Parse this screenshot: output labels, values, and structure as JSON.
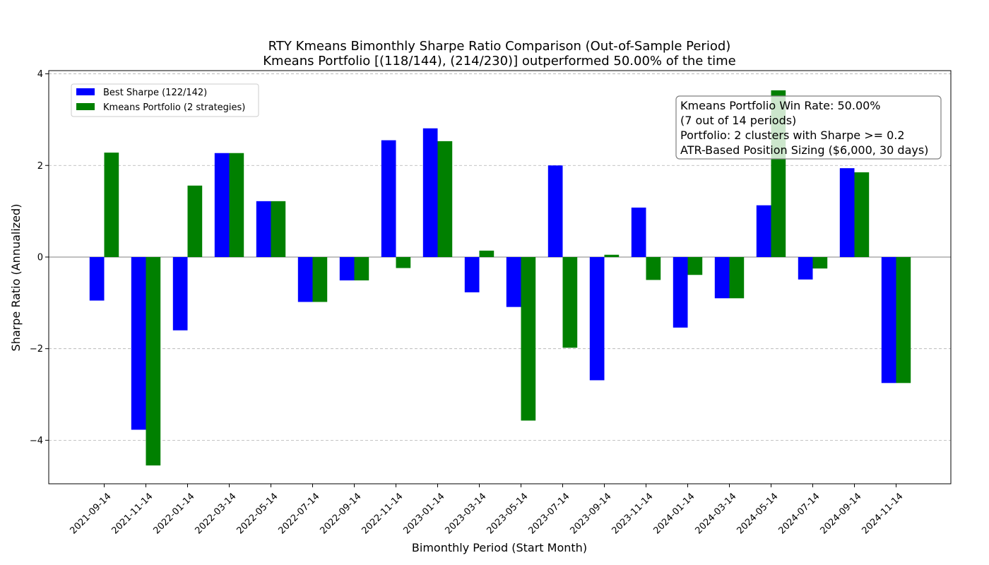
{
  "chart_data": {
    "type": "bar",
    "title": "RTY Kmeans Bimonthly Sharpe Ratio Comparison (Out-of-Sample Period)",
    "subtitle": "Kmeans Portfolio [(118/144), (214/230)] outperformed 50.00% of the time",
    "xlabel": "Bimonthly Period (Start Month)",
    "ylabel": "Sharpe Ratio (Annualized)",
    "ylim": [
      -4.95,
      4.07
    ],
    "yticks": [
      -4,
      -2,
      0,
      2,
      4
    ],
    "ytick_labels": [
      "−4",
      "−2",
      "0",
      "2",
      "4"
    ],
    "grid": "horizontal dashed",
    "legend_position": "upper-left",
    "categories": [
      "2021-09-14",
      "2021-11-14",
      "2022-01-14",
      "2022-03-14",
      "2022-05-14",
      "2022-07-14",
      "2022-09-14",
      "2022-11-14",
      "2023-01-14",
      "2023-03-14",
      "2023-05-14",
      "2023-07-14",
      "2023-09-14",
      "2023-11-14",
      "2024-01-14",
      "2024-03-14",
      "2024-05-14",
      "2024-07-14",
      "2024-09-14",
      "2024-11-14"
    ],
    "series": [
      {
        "name": "Best Sharpe (122/142)",
        "color": "#0000ff",
        "values": [
          -0.95,
          -3.77,
          -1.6,
          2.27,
          1.22,
          -0.98,
          -0.51,
          2.55,
          2.81,
          -0.77,
          -1.09,
          2.0,
          -2.69,
          1.08,
          -1.54,
          -0.9,
          1.13,
          -0.49,
          1.94,
          -2.75
        ]
      },
      {
        "name": "Kmeans Portfolio (2 strategies)",
        "color": "#008000",
        "values": [
          2.28,
          -4.55,
          1.56,
          2.27,
          1.22,
          -0.98,
          -0.51,
          -0.24,
          2.53,
          0.14,
          -3.57,
          -1.98,
          0.05,
          -0.5,
          -0.39,
          -0.9,
          3.64,
          -0.25,
          1.85,
          -2.75
        ]
      }
    ],
    "annotation": {
      "lines": [
        "Kmeans Portfolio Win Rate: 50.00%",
        "(7 out of 14 periods)",
        "Portfolio: 2 clusters with Sharpe >= 0.2",
        "ATR-Based Position Sizing ($6,000, 30 days)"
      ]
    }
  }
}
